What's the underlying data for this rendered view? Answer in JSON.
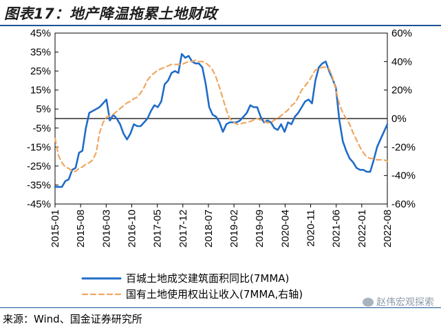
{
  "figure": {
    "title": "图表17：地产降温拖累土地财政",
    "source": "来源：Wind、国金证券研究所",
    "watermark": "赵伟宏观探索"
  },
  "colors": {
    "series1": "#1f6cc8",
    "series2": "#f0a660",
    "title_rule": "#1a5296"
  },
  "chart_data": {
    "type": "line",
    "title": "地产降温拖累土地财政",
    "x_tick_labels": [
      "2015-01",
      "2015-08",
      "2016-03",
      "2016-10",
      "2017-05",
      "2017-12",
      "2018-07",
      "2019-02",
      "2019-09",
      "2020-04",
      "2020-11",
      "2021-06",
      "2022-01",
      "2022-08"
    ],
    "x_start": "2015-01",
    "x_end": "2022-08",
    "left_axis": {
      "min": -45,
      "max": 45,
      "step": 10,
      "unit": "%",
      "tick_labels": [
        "45%",
        "35%",
        "25%",
        "15%",
        "5%",
        "-5%",
        "-15%",
        "-25%",
        "-35%",
        "-45%"
      ]
    },
    "right_axis": {
      "min": -60,
      "max": 60,
      "step": 20,
      "unit": "%",
      "tick_labels": [
        "60%",
        "40%",
        "20%",
        "0%",
        "-20%",
        "-40%",
        "-60%"
      ]
    },
    "series": [
      {
        "name": "百城土地成交建筑面积同比(7MMA)",
        "axis": "left",
        "style": "solid",
        "values": [
          -36,
          -36,
          -36,
          -33,
          -32,
          -27,
          -26,
          -18,
          -17,
          -5,
          3,
          4,
          5,
          6,
          8,
          10,
          -1,
          2,
          0,
          -3,
          -8,
          -11,
          -8,
          -3,
          -4,
          -4,
          -2,
          0,
          4,
          7,
          6,
          9,
          18,
          20,
          24,
          25,
          24,
          34,
          32,
          33,
          30,
          29,
          29,
          27,
          18,
          6,
          2,
          1,
          -2,
          -7,
          -3,
          -2,
          -2,
          -2,
          -1,
          1,
          3,
          7,
          6,
          6,
          1,
          -2,
          -1,
          -2,
          -5,
          -6,
          -3,
          -7,
          -2,
          -3,
          1,
          3,
          6,
          9,
          10,
          8,
          20,
          27,
          29,
          30,
          25,
          21,
          16,
          -1,
          -12,
          -17,
          -21,
          -23,
          -26,
          -27,
          -27,
          -28,
          -28,
          -22,
          -15,
          -11,
          -7,
          -3
        ]
      },
      {
        "name": "国有土地使用权出让收入(7MMA,右轴)",
        "axis": "right",
        "style": "dashed",
        "values": [
          -14,
          -26,
          -31,
          -34,
          -35,
          -37,
          -37,
          -35,
          -34,
          -32,
          -31,
          -29,
          -24,
          -10,
          -3,
          1,
          2,
          3,
          5,
          7,
          9,
          11,
          12,
          14,
          15,
          18,
          22,
          27,
          30,
          32,
          34,
          35,
          36,
          37,
          38,
          38,
          38,
          38,
          39,
          40,
          40,
          41,
          40,
          40,
          39,
          37,
          34,
          29,
          22,
          14,
          6,
          0,
          -2,
          -4,
          -4,
          -3,
          -3,
          -2,
          -1,
          0,
          -1,
          -2,
          -3,
          -3,
          -1,
          0,
          2,
          4,
          6,
          9,
          11,
          15,
          20,
          23,
          26,
          30,
          34,
          35,
          36,
          36,
          35,
          29,
          20,
          10,
          4,
          0,
          -4,
          -10,
          -15,
          -20,
          -24,
          -27,
          -28,
          -28,
          -29,
          -29,
          -29,
          -30
        ]
      }
    ],
    "legend": [
      "百城土地成交建筑面积同比(7MMA)",
      "国有土地使用权出让收入(7MMA,右轴)"
    ],
    "legend_position": "bottom",
    "grid": false
  }
}
